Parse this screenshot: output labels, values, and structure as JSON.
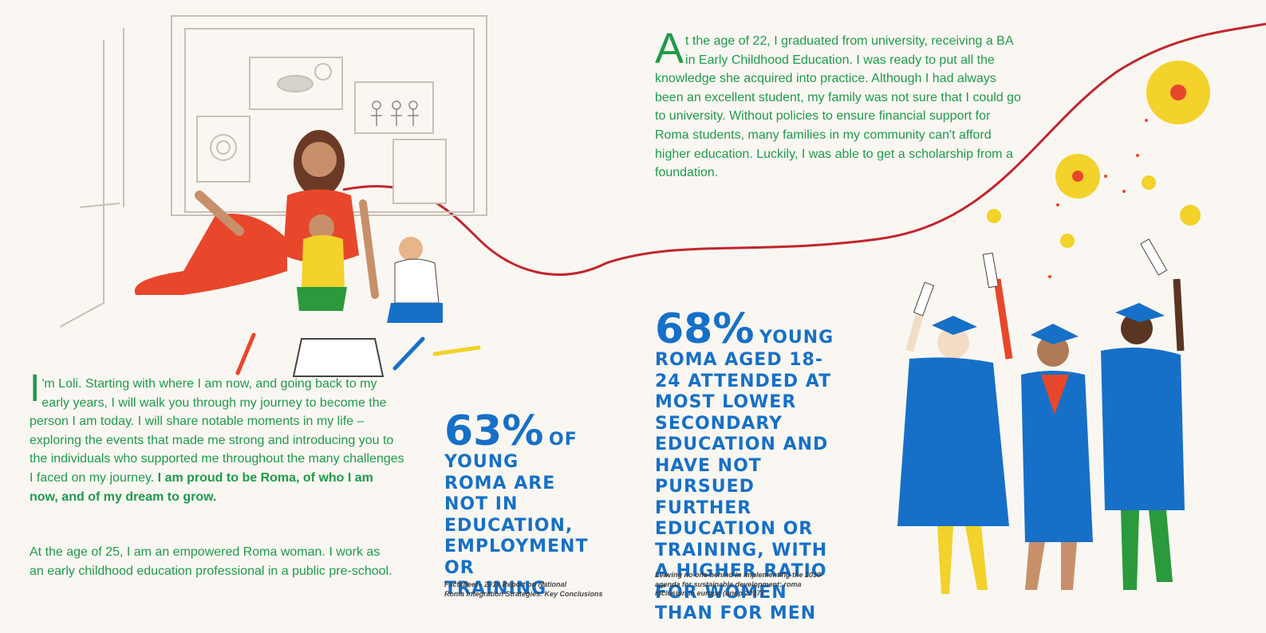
{
  "intro": {
    "initial": "I",
    "text": "'m Loli. Starting with where I am now, and going back to my early years, I will walk you through my journey to become the person I am today. I will share notable moments in my life – exploring the events that made me strong and introducing you to the individuals who supported me throughout the many challenges I faced on my journey. ",
    "bold": "I am proud to be Roma, of who I am now, and of my dream to grow."
  },
  "age25": "At the age of 25, I am an empowered Roma woman. I work as an early childhood education professional in a public pre-school.",
  "age22": {
    "initial": "A",
    "text": "t the age of 22, I graduated from university, receiving a BA in Early Childhood Education. I was ready to put all the knowledge she acquired into practice. Although I had always been an excellent student, my family was not sure that I could go to university. Without policies to ensure financial support for Roma students, many families in my community can't afford higher education. Luckily, I was able to get a scholarship from a foundation."
  },
  "stat63": {
    "number": "63%",
    "lead": "OF",
    "text": "YOUNG ROMA ARE NOT IN EDUCATION, EMPLOYMENT OR TRAINING",
    "source_line1": "Factsheet - 2019 Report on National",
    "source_line2": "Roma Integration Strategies: Key Conclusions"
  },
  "stat68": {
    "number": "68%",
    "lead": "YOUNG",
    "text": "ROMA AGED 18-24 ATTENDED AT MOST LOWER SECONDARY EDUCATION AND HAVE NOT PURSUED FURTHER EDUCATION OR TRAINING, WITH A HIGHER RATIO FOR WOMEN THAN FOR MEN",
    "source_line1": "Leaving no one behind in implementing the 2030",
    "source_line2": "agenda for sustainable development: roma",
    "source_line3": "inclusion in europe (undp 2017)"
  },
  "colors": {
    "green": "#1f9a4a",
    "blue": "#1670c7",
    "red": "#c0262d",
    "background": "#faf7f2"
  }
}
